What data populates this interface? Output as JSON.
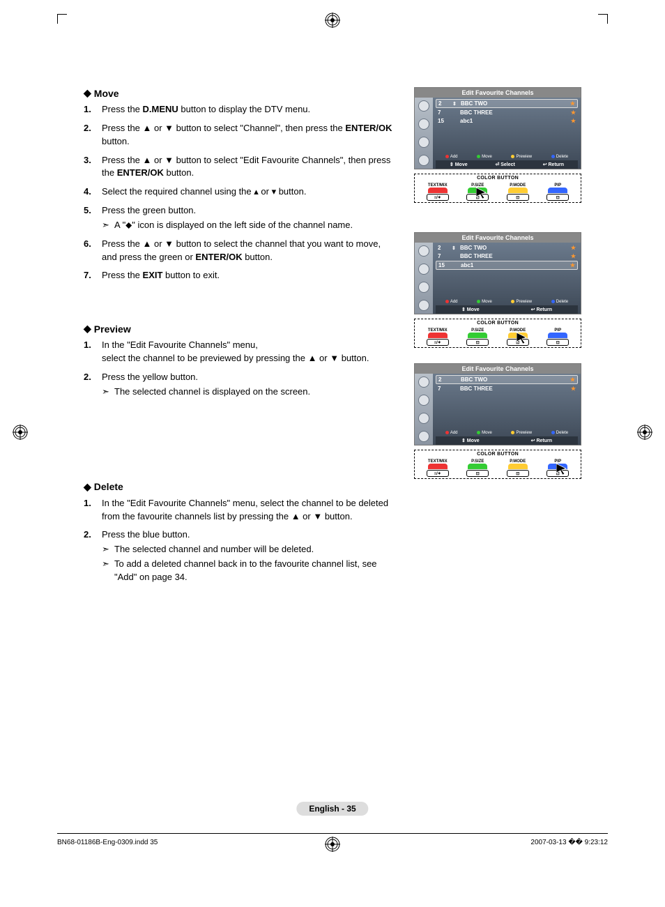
{
  "page": {
    "lang_label": "English - 35",
    "footer_file": "BN68-01186B-Eng-0309.indd   35",
    "footer_date": "2007-03-13   �� 9:23:12"
  },
  "symbols": {
    "diamond": "◆",
    "up": "▲",
    "down": "▼",
    "smup": "▴",
    "smdn": "▾",
    "note": "➣",
    "star": "★",
    "sort": "⇕"
  },
  "sections": {
    "move": {
      "title": "Move",
      "steps": [
        {
          "n": "1.",
          "html": "Press the <b>D.MENU</b> button to display the DTV menu."
        },
        {
          "n": "2.",
          "html": "Press the ▲ or ▼ button to select \"Channel\", then press the <b>ENTER/OK</b> button."
        },
        {
          "n": "3.",
          "html": "Press the ▲ or ▼ button to select \"Edit Favourite Channels\", then press the <b>ENTER/OK</b> button."
        },
        {
          "n": "4.",
          "html": "Select the required channel using the ▴ or ▾ button."
        },
        {
          "n": "5.",
          "html": "Press the green button.",
          "notes": [
            "A \"⬥\" icon is displayed on the left side of the channel name."
          ]
        },
        {
          "n": "6.",
          "html": "Press the ▲ or ▼ button to select the channel that you want to move, and press the green or <b>ENTER/OK</b> button."
        },
        {
          "n": "7.",
          "html": "Press the <b>EXIT</b> button to exit."
        }
      ]
    },
    "preview": {
      "title": "Preview",
      "steps": [
        {
          "n": "1.",
          "html": "In the \"Edit Favourite Channels\" menu,<br>select the channel to be previewed by pressing the ▲ or ▼ button."
        },
        {
          "n": "2.",
          "html": "Press the yellow button.",
          "notes": [
            "The selected channel is displayed on the screen."
          ]
        }
      ]
    },
    "delete": {
      "title": "Delete",
      "steps": [
        {
          "n": "1.",
          "html": "In the \"Edit Favourite Channels\" menu, select the channel to be deleted from the favourite channels list by pressing the ▲ or ▼ button."
        },
        {
          "n": "2.",
          "html": "Press the blue button.",
          "notes": [
            "The selected channel and number will be deleted.",
            "To add a deleted channel back in to the favourite channel list, see \"Add\" on page 34."
          ]
        }
      ]
    }
  },
  "tv": {
    "title": "Edit Favourite Channels",
    "hints": {
      "add": "Add",
      "move": "Move",
      "preview": "Prewiew",
      "delete": "Delete"
    },
    "bar3": {
      "a": "Move",
      "b": "Select",
      "c": "Return"
    },
    "bar2": {
      "a": "Move",
      "b": "Return"
    },
    "shot1": {
      "channels": [
        {
          "num": "2",
          "name": "BBC TWO",
          "sort": true,
          "sel": true
        },
        {
          "num": "7",
          "name": "BBC THREE",
          "sort": false,
          "sel": false
        },
        {
          "num": "15",
          "name": "abc1",
          "sort": false,
          "sel": false
        }
      ]
    },
    "shot2": {
      "channels": [
        {
          "num": "2",
          "name": "BBC TWO",
          "sort": true,
          "sel": false
        },
        {
          "num": "7",
          "name": "BBC THREE",
          "sort": false,
          "sel": false
        },
        {
          "num": "15",
          "name": "abc1",
          "sort": false,
          "sel": true
        }
      ]
    },
    "shot3": {
      "channels": [
        {
          "num": "2",
          "name": "BBC TWO",
          "sort": false,
          "sel": true
        },
        {
          "num": "7",
          "name": "BBC THREE",
          "sort": false,
          "sel": false
        }
      ]
    }
  },
  "remote": {
    "label": "COLOR BUTTON",
    "buttons": [
      {
        "top": "TEXT/MIX",
        "cls": "r",
        "sub": "≡/✦"
      },
      {
        "top": "P.SIZE",
        "cls": "g",
        "sub": "⊡"
      },
      {
        "top": "P.MODE",
        "cls": "y",
        "sub": "⊡"
      },
      {
        "top": "PIP",
        "cls": "b",
        "sub": "⊡"
      }
    ]
  },
  "colors": {
    "tv_grad_top": "#6b7a8c",
    "tv_grad_bot": "#3d4856",
    "star": "#ff9830",
    "red": "#e33",
    "green": "#3c3",
    "yellow": "#fc3",
    "blue": "#36f"
  }
}
